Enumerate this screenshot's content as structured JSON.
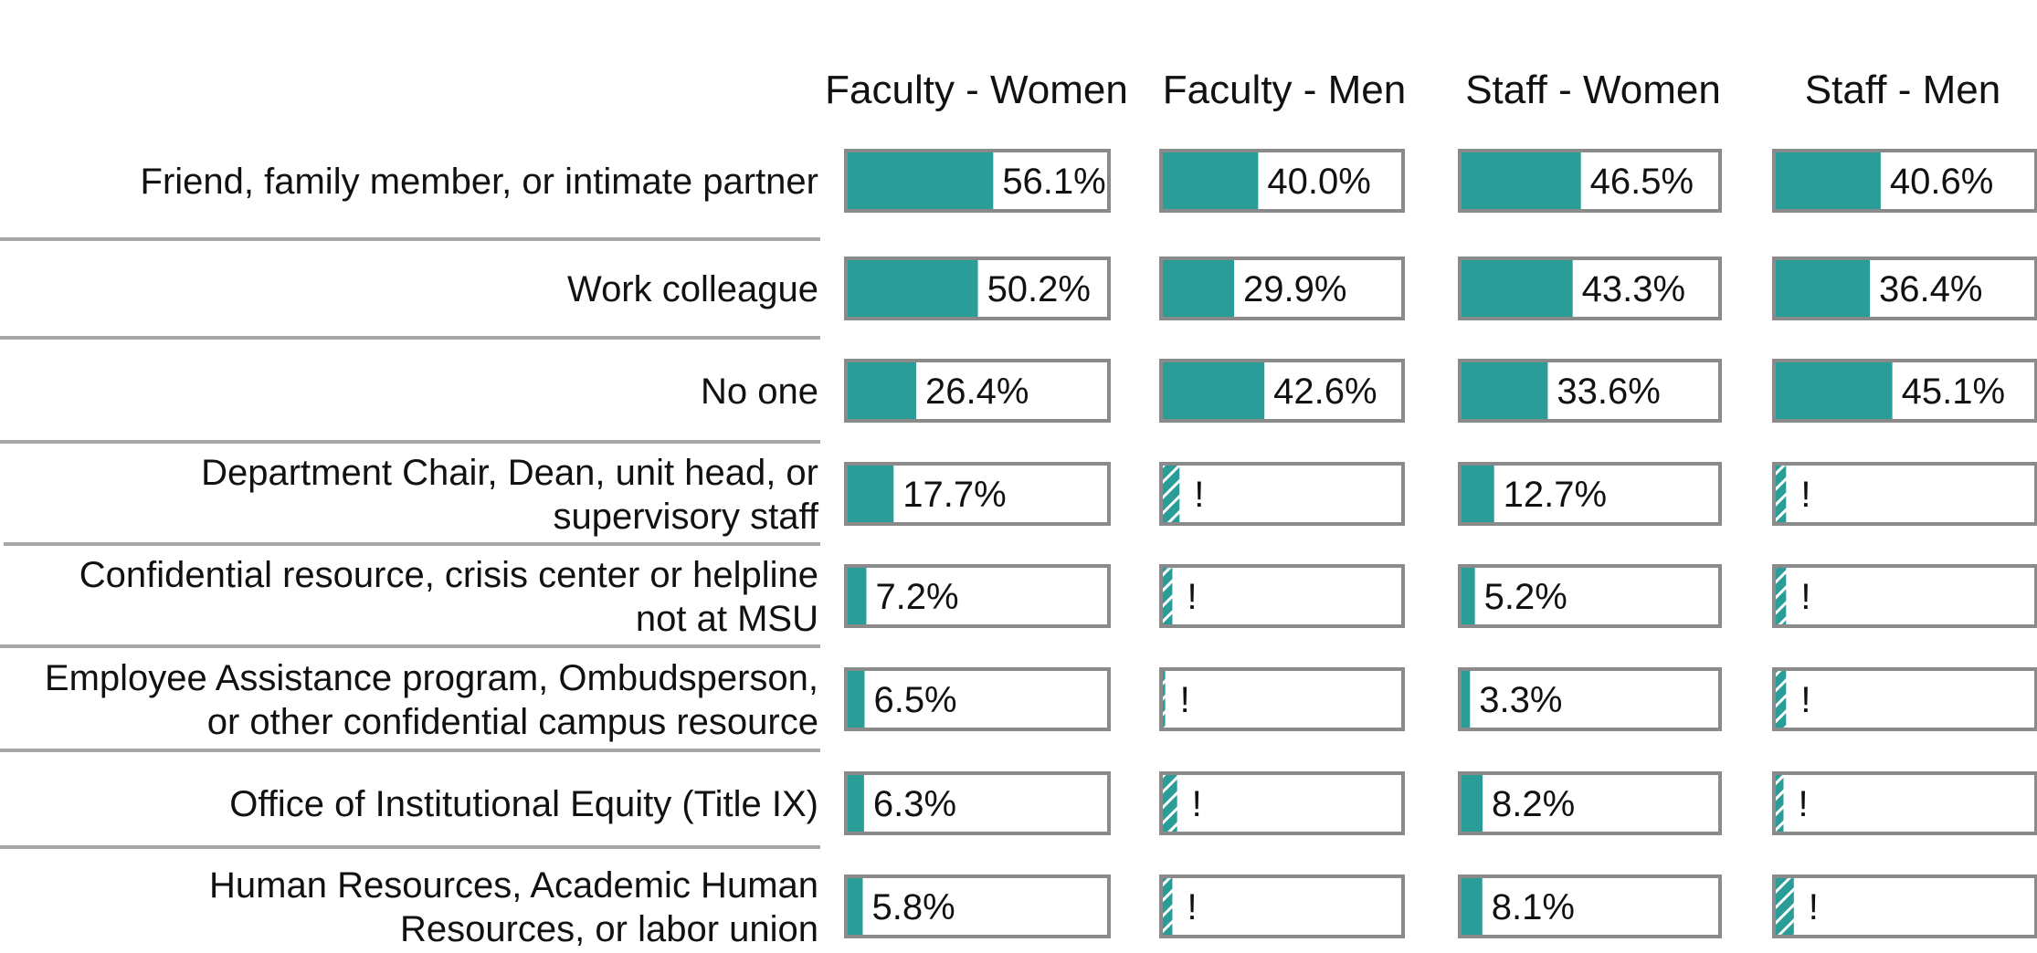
{
  "chart_data": {
    "type": "bar",
    "orientation": "horizontal",
    "layout": "small-multiples",
    "columns": [
      "Faculty - Women",
      "Faculty - Men",
      "Staff - Women",
      "Staff - Men"
    ],
    "categories": [
      [
        "Friend, family member, or intimate partner"
      ],
      [
        "Work colleague"
      ],
      [
        "No one"
      ],
      [
        "Department Chair, Dean, unit head, or",
        "supervisory staff"
      ],
      [
        "Confidential resource, crisis center or helpline",
        "not at MSU"
      ],
      [
        "Employee Assistance program, Ombudsperson,",
        "or other confidential campus resource"
      ],
      [
        "Office of Institutional Equity (Title IX)"
      ],
      [
        "Human Resources, Academic Human",
        "Resources, or labor union"
      ]
    ],
    "series": [
      {
        "name": "Faculty - Women",
        "values": [
          56.1,
          50.2,
          26.4,
          17.7,
          7.2,
          6.5,
          6.3,
          5.8
        ],
        "labels": [
          "56.1%",
          "50.2%",
          "26.4%",
          "17.7%",
          "7.2%",
          "6.5%",
          "6.3%",
          "5.8%"
        ],
        "suppressed": [
          false,
          false,
          false,
          false,
          false,
          false,
          false,
          false
        ]
      },
      {
        "name": "Faculty - Men",
        "values": [
          40.0,
          29.9,
          42.6,
          7,
          4,
          1,
          6,
          4
        ],
        "labels": [
          "40.0%",
          "29.9%",
          "42.6%",
          "!",
          "!",
          "!",
          "!",
          "!"
        ],
        "suppressed": [
          false,
          false,
          false,
          true,
          true,
          true,
          true,
          true
        ]
      },
      {
        "name": "Staff - Women",
        "values": [
          46.5,
          43.3,
          33.6,
          12.7,
          5.2,
          3.3,
          8.2,
          8.1
        ],
        "labels": [
          "46.5%",
          "43.3%",
          "33.6%",
          "12.7%",
          "5.2%",
          "3.3%",
          "8.2%",
          "8.1%"
        ],
        "suppressed": [
          false,
          false,
          false,
          false,
          false,
          false,
          false,
          false
        ]
      },
      {
        "name": "Staff - Men",
        "values": [
          40.6,
          36.4,
          45.1,
          4,
          4,
          4,
          3,
          7
        ],
        "labels": [
          "40.6%",
          "36.4%",
          "45.1%",
          "!",
          "!",
          "!",
          "!",
          "!"
        ],
        "suppressed": [
          false,
          false,
          false,
          true,
          true,
          true,
          true,
          true
        ]
      }
    ],
    "xlim": [
      0,
      100
    ],
    "grid": false,
    "legend": "none",
    "colors": {
      "bar": "#2a9d98",
      "frame": "#8a8a8a",
      "separator": "#a6a6a6",
      "text": "#111111"
    }
  }
}
